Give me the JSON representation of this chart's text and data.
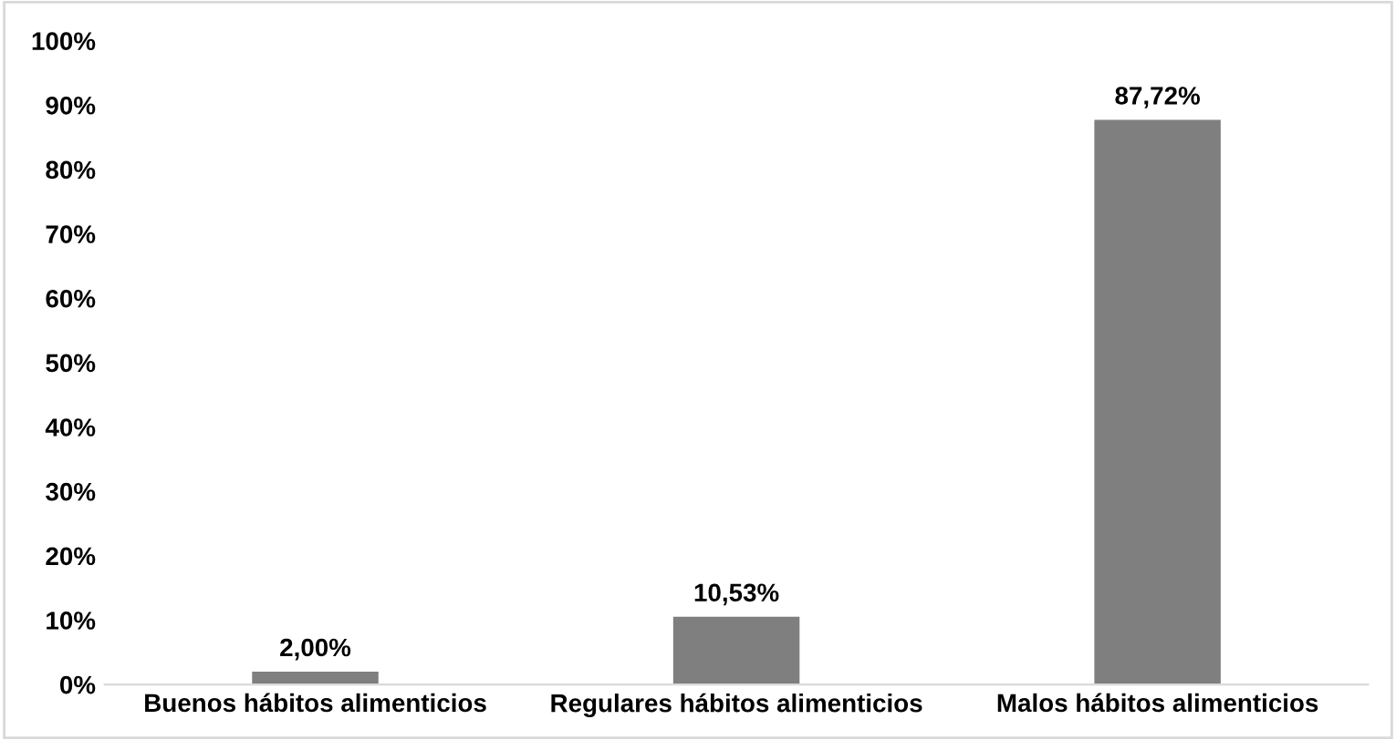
{
  "chart_data": {
    "type": "bar",
    "categories": [
      "Buenos hábitos alimenticios",
      "Regulares hábitos alimenticios",
      "Malos hábitos alimenticios"
    ],
    "values": [
      2.0,
      10.53,
      87.72
    ],
    "value_labels": [
      "2,00%",
      "10,53%",
      "87,72%"
    ],
    "color": "#7f7f7f",
    "ylim": [
      0,
      100
    ],
    "yticks": [
      {
        "value": 0,
        "label": "0%"
      },
      {
        "value": 10,
        "label": "10%"
      },
      {
        "value": 20,
        "label": "20%"
      },
      {
        "value": 30,
        "label": "30%"
      },
      {
        "value": 40,
        "label": "40%"
      },
      {
        "value": 50,
        "label": "50%"
      },
      {
        "value": 60,
        "label": "60%"
      },
      {
        "value": 70,
        "label": "70%"
      },
      {
        "value": 80,
        "label": "80%"
      },
      {
        "value": 90,
        "label": "90%"
      },
      {
        "value": 100,
        "label": "100%"
      }
    ],
    "grid": false,
    "legend": false
  }
}
